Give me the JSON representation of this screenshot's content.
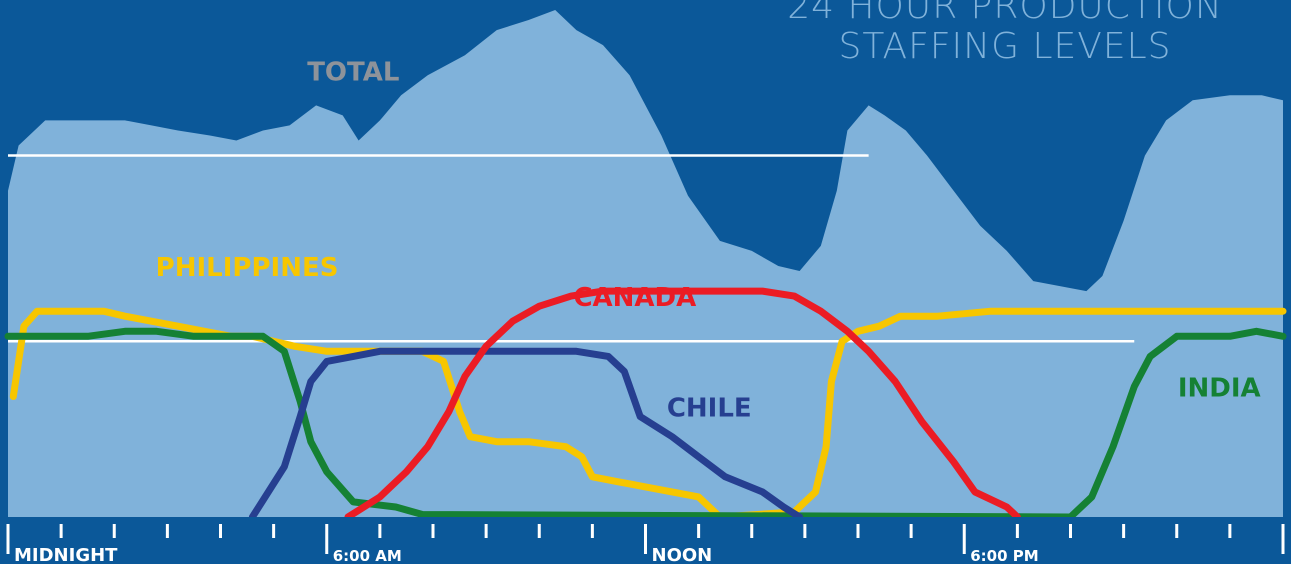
{
  "colors": {
    "background": "#0b5899",
    "total_fill": "#80b2da",
    "total_label": "#8e939a",
    "title": "#80b2da",
    "tick": "#ffffff",
    "guide": "#ffffff",
    "Philippines": "#f7c600",
    "India": "#158134",
    "Chile": "#263f90",
    "Canada": "#eb1c24"
  },
  "title_lines": [
    "24 HOUR PRODUCTION",
    "STAFFING LEVELS"
  ],
  "chart_data": {
    "type": "area",
    "title": "24 HOUR PRODUCTION STAFFING LEVELS",
    "x_unit": "hour of day",
    "xlim": [
      0,
      24
    ],
    "ylim": [
      0,
      100
    ],
    "grid": false,
    "legend": "inline labels",
    "tick_labels": [
      {
        "x": 0,
        "label": "MIDNIGHT"
      },
      {
        "x": 6,
        "label": "6:00 AM"
      },
      {
        "x": 12,
        "label": "NOON"
      },
      {
        "x": 18,
        "label": "6:00 PM"
      }
    ],
    "minor_ticks": [
      0,
      1,
      2,
      3,
      4,
      5,
      6,
      7,
      8,
      9,
      10,
      11,
      12,
      13,
      14,
      15,
      16,
      17,
      18,
      19,
      20,
      21,
      22,
      23,
      24
    ],
    "reference_lines": [
      {
        "y": 72,
        "x_from": 0,
        "x_to": 16.2
      },
      {
        "y": 35,
        "x_from": 0,
        "x_to": 21.2
      }
    ],
    "series": [
      {
        "name": "TOTAL",
        "kind": "area",
        "label_pos": [
          6.5,
          87
        ],
        "points": [
          [
            0,
            65
          ],
          [
            0.2,
            74
          ],
          [
            0.7,
            79
          ],
          [
            1.5,
            79
          ],
          [
            2.2,
            79
          ],
          [
            2.7,
            78
          ],
          [
            3.2,
            77
          ],
          [
            3.8,
            76
          ],
          [
            4.3,
            75
          ],
          [
            4.8,
            77
          ],
          [
            5.3,
            78
          ],
          [
            5.8,
            82
          ],
          [
            6.3,
            80
          ],
          [
            6.6,
            75
          ],
          [
            7,
            79
          ],
          [
            7.4,
            84
          ],
          [
            7.9,
            88
          ],
          [
            8.6,
            92
          ],
          [
            9.2,
            97
          ],
          [
            9.8,
            99
          ],
          [
            10.3,
            101
          ],
          [
            10.7,
            97
          ],
          [
            11.2,
            94
          ],
          [
            11.7,
            88
          ],
          [
            12.3,
            76
          ],
          [
            12.8,
            64
          ],
          [
            13.4,
            55
          ],
          [
            14,
            53
          ],
          [
            14.5,
            50
          ],
          [
            14.9,
            49
          ],
          [
            15.3,
            54
          ],
          [
            15.6,
            65
          ],
          [
            15.8,
            77
          ],
          [
            16.2,
            82
          ],
          [
            16.5,
            80
          ],
          [
            16.9,
            77
          ],
          [
            17.3,
            72
          ],
          [
            17.8,
            65
          ],
          [
            18.3,
            58
          ],
          [
            18.8,
            53
          ],
          [
            19.3,
            47
          ],
          [
            19.8,
            46
          ],
          [
            20.3,
            45
          ],
          [
            20.6,
            48
          ],
          [
            21,
            59
          ],
          [
            21.4,
            72
          ],
          [
            21.8,
            79
          ],
          [
            22.3,
            83
          ],
          [
            23,
            84
          ],
          [
            23.6,
            84
          ],
          [
            24,
            83
          ],
          [
            24,
            0
          ],
          [
            0,
            0
          ]
        ]
      },
      {
        "name": "PHILIPPINES",
        "kind": "line",
        "label_pos": [
          4.5,
          48
        ],
        "points": [
          [
            0.1,
            24
          ],
          [
            0.3,
            38
          ],
          [
            0.55,
            41
          ],
          [
            0.8,
            41
          ],
          [
            1.3,
            41
          ],
          [
            1.8,
            41
          ],
          [
            2.2,
            40
          ],
          [
            2.7,
            39
          ],
          [
            3.2,
            38
          ],
          [
            3.7,
            37
          ],
          [
            4.2,
            36
          ],
          [
            4.6,
            36
          ],
          [
            5,
            35
          ],
          [
            5.4,
            34
          ],
          [
            6,
            33
          ],
          [
            6.6,
            33
          ],
          [
            7.2,
            33
          ],
          [
            7.8,
            33
          ],
          [
            8.2,
            31
          ],
          [
            8.5,
            21
          ],
          [
            8.7,
            16
          ],
          [
            9.2,
            15
          ],
          [
            9.8,
            15
          ],
          [
            10.5,
            14
          ],
          [
            10.8,
            12
          ],
          [
            11,
            8
          ],
          [
            11.5,
            7
          ],
          [
            12,
            6
          ],
          [
            12.5,
            5
          ],
          [
            13,
            4
          ],
          [
            13.4,
            0
          ],
          [
            14.8,
            1
          ],
          [
            15.2,
            5
          ],
          [
            15.4,
            14
          ],
          [
            15.5,
            27
          ],
          [
            15.7,
            35
          ],
          [
            16,
            37
          ],
          [
            16.4,
            38
          ],
          [
            16.8,
            40
          ],
          [
            17.5,
            40
          ],
          [
            18.5,
            41
          ],
          [
            19.5,
            41
          ],
          [
            20.5,
            41
          ],
          [
            21.5,
            41
          ],
          [
            22.5,
            41
          ],
          [
            23.5,
            41
          ],
          [
            24,
            41
          ]
        ]
      },
      {
        "name": "INDIA",
        "kind": "line",
        "label_pos": [
          22.8,
          24
        ],
        "points": [
          [
            0,
            36
          ],
          [
            0.7,
            36
          ],
          [
            1.5,
            36
          ],
          [
            2.2,
            37
          ],
          [
            2.8,
            37
          ],
          [
            3.5,
            36
          ],
          [
            4.3,
            36
          ],
          [
            4.8,
            36
          ],
          [
            5.2,
            33
          ],
          [
            5.5,
            23
          ],
          [
            5.7,
            15
          ],
          [
            6,
            9
          ],
          [
            6.5,
            3
          ],
          [
            7.3,
            2
          ],
          [
            7.8,
            0.5
          ],
          [
            20,
            0
          ],
          [
            20.4,
            4
          ],
          [
            20.8,
            14
          ],
          [
            21.2,
            26
          ],
          [
            21.5,
            32
          ],
          [
            22,
            36
          ],
          [
            22.5,
            36
          ],
          [
            23,
            36
          ],
          [
            23.5,
            37
          ],
          [
            24,
            36
          ]
        ]
      },
      {
        "name": "CHILE",
        "kind": "line",
        "label_pos": [
          13.2,
          20
        ],
        "points": [
          [
            4.6,
            0
          ],
          [
            5.2,
            10
          ],
          [
            5.5,
            20
          ],
          [
            5.7,
            27
          ],
          [
            6,
            31
          ],
          [
            6.5,
            32
          ],
          [
            7,
            33
          ],
          [
            7.8,
            33
          ],
          [
            8.5,
            33
          ],
          [
            9.2,
            33
          ],
          [
            10,
            33
          ],
          [
            10.7,
            33
          ],
          [
            11.3,
            32
          ],
          [
            11.6,
            29
          ],
          [
            11.9,
            20
          ],
          [
            12.5,
            16
          ],
          [
            13,
            12
          ],
          [
            13.5,
            8
          ],
          [
            14.2,
            5
          ],
          [
            14.6,
            2
          ],
          [
            14.9,
            0
          ]
        ]
      },
      {
        "name": "CANADA",
        "kind": "line",
        "label_pos": [
          11.8,
          42
        ],
        "points": [
          [
            6.4,
            0
          ],
          [
            7,
            4
          ],
          [
            7.5,
            9
          ],
          [
            7.9,
            14
          ],
          [
            8.3,
            21
          ],
          [
            8.6,
            28
          ],
          [
            9,
            34
          ],
          [
            9.5,
            39
          ],
          [
            10,
            42
          ],
          [
            10.6,
            44
          ],
          [
            11.2,
            45
          ],
          [
            12,
            45
          ],
          [
            12.8,
            45
          ],
          [
            13.5,
            45
          ],
          [
            14.2,
            45
          ],
          [
            14.8,
            44
          ],
          [
            15.3,
            41
          ],
          [
            15.8,
            37
          ],
          [
            16.2,
            33
          ],
          [
            16.7,
            27
          ],
          [
            17.2,
            19
          ],
          [
            17.8,
            11
          ],
          [
            18.2,
            5
          ],
          [
            18.8,
            2
          ],
          [
            19,
            0
          ]
        ]
      }
    ]
  }
}
